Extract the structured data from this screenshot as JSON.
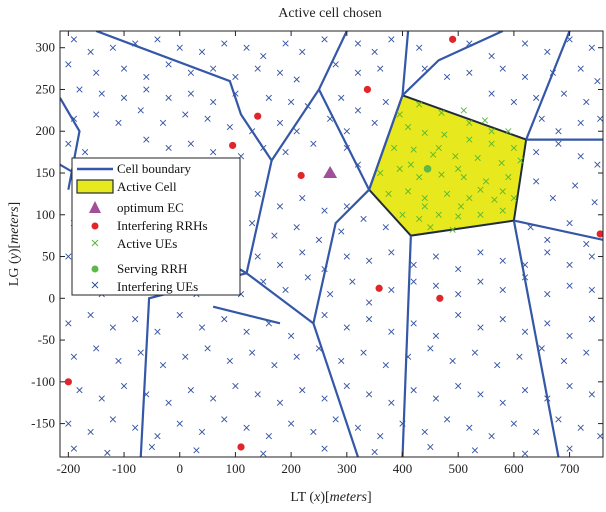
{
  "chart_data": {
    "type": "scatter",
    "title": "Active cell chosen",
    "xlabel": "LT (x)[meters]",
    "ylabel": "LG (y)[meters]",
    "xlim": [
      -215,
      760
    ],
    "ylim": [
      -190,
      320
    ],
    "xticks": [
      -200,
      -100,
      0,
      100,
      200,
      300,
      400,
      500,
      600,
      700
    ],
    "yticks": [
      -150,
      -100,
      -50,
      0,
      50,
      100,
      150,
      200,
      250,
      300
    ],
    "legend": {
      "position": "left",
      "entries": [
        "Cell boundary",
        "Active Cell",
        "optimum EC",
        "Interfering RRHs",
        "Active UEs",
        "Serving RRH",
        "Interfering UEs"
      ]
    },
    "colors": {
      "cell_boundary": "#3457a8",
      "active_cell_fill": "#e8e81e",
      "active_cell_edge": "#1f2d3a",
      "optimum_ec": "#a0509a",
      "interfering_rrh": "#e0262a",
      "active_ue": "#55b832",
      "serving_rrh": "#5cb84a",
      "interfering_ue": "#2f4fa0"
    },
    "active_cell": [
      [
        400,
        243
      ],
      [
        622,
        190
      ],
      [
        600,
        93
      ],
      [
        415,
        75
      ],
      [
        340,
        130
      ]
    ],
    "cell_boundaries": [
      [
        [
          -150,
          320
        ],
        [
          90,
          260
        ],
        [
          110,
          220
        ],
        [
          165,
          165
        ]
      ],
      [
        [
          165,
          165
        ],
        [
          250,
          250
        ],
        [
          300,
          320
        ]
      ],
      [
        [
          250,
          250
        ],
        [
          340,
          130
        ]
      ],
      [
        [
          340,
          130
        ],
        [
          280,
          90
        ],
        [
          240,
          -30
        ]
      ],
      [
        [
          340,
          130
        ],
        [
          400,
          243
        ],
        [
          410,
          320
        ]
      ],
      [
        [
          400,
          243
        ],
        [
          465,
          285
        ],
        [
          580,
          320
        ]
      ],
      [
        [
          622,
          190
        ],
        [
          700,
          320
        ]
      ],
      [
        [
          622,
          190
        ],
        [
          760,
          190
        ]
      ],
      [
        [
          415,
          75
        ],
        [
          400,
          -190
        ]
      ],
      [
        [
          600,
          93
        ],
        [
          680,
          -190
        ]
      ],
      [
        [
          600,
          93
        ],
        [
          760,
          70
        ]
      ],
      [
        [
          165,
          165
        ],
        [
          120,
          30
        ],
        [
          -215,
          160
        ]
      ],
      [
        [
          120,
          30
        ],
        [
          240,
          -30
        ]
      ],
      [
        [
          240,
          -30
        ],
        [
          320,
          -190
        ]
      ],
      [
        [
          -215,
          240
        ],
        [
          -180,
          200
        ],
        [
          -200,
          130
        ]
      ],
      [
        [
          120,
          30
        ],
        [
          -55,
          0
        ],
        [
          -70,
          -190
        ]
      ],
      [
        [
          60,
          -10
        ],
        [
          180,
          -30
        ]
      ]
    ],
    "optimum_ec": [
      [
        270,
        150
      ]
    ],
    "interfering_rrhs": [
      [
        490,
        310
      ],
      [
        140,
        218
      ],
      [
        337,
        250
      ],
      [
        95,
        183
      ],
      [
        218,
        147
      ],
      [
        358,
        12
      ],
      [
        467,
        0
      ],
      [
        755,
        77
      ],
      [
        -200,
        -100
      ],
      [
        110,
        -178
      ]
    ],
    "serving_rrh": [
      [
        445,
        155
      ]
    ],
    "active_ues": [
      [
        395,
        220
      ],
      [
        430,
        232
      ],
      [
        470,
        222
      ],
      [
        510,
        225
      ],
      [
        548,
        213
      ],
      [
        590,
        200
      ],
      [
        410,
        205
      ],
      [
        440,
        198
      ],
      [
        475,
        196
      ],
      [
        520,
        190
      ],
      [
        560,
        185
      ],
      [
        600,
        180
      ],
      [
        385,
        180
      ],
      [
        420,
        178
      ],
      [
        455,
        172
      ],
      [
        495,
        170
      ],
      [
        535,
        168
      ],
      [
        578,
        162
      ],
      [
        612,
        165
      ],
      [
        360,
        150
      ],
      [
        395,
        155
      ],
      [
        430,
        145
      ],
      [
        470,
        148
      ],
      [
        510,
        145
      ],
      [
        550,
        140
      ],
      [
        590,
        145
      ],
      [
        375,
        125
      ],
      [
        410,
        128
      ],
      [
        440,
        120
      ],
      [
        480,
        125
      ],
      [
        520,
        120
      ],
      [
        565,
        118
      ],
      [
        600,
        120
      ],
      [
        400,
        100
      ],
      [
        430,
        95
      ],
      [
        465,
        100
      ],
      [
        500,
        98
      ],
      [
        540,
        100
      ],
      [
        580,
        105
      ],
      [
        450,
        85
      ],
      [
        490,
        82
      ],
      [
        520,
        210
      ],
      [
        465,
        180
      ],
      [
        500,
        155
      ],
      [
        540,
        130
      ],
      [
        415,
        160
      ],
      [
        580,
        128
      ],
      [
        440,
        110
      ],
      [
        560,
        200
      ],
      [
        505,
        110
      ]
    ],
    "interfering_ues": [
      [
        -190,
        310
      ],
      [
        -160,
        295
      ],
      [
        -120,
        300
      ],
      [
        -80,
        305
      ],
      [
        -40,
        310
      ],
      [
        0,
        300
      ],
      [
        40,
        295
      ],
      [
        80,
        305
      ],
      [
        120,
        300
      ],
      [
        150,
        290
      ],
      [
        190,
        305
      ],
      [
        220,
        295
      ],
      [
        260,
        310
      ],
      [
        320,
        305
      ],
      [
        350,
        295
      ],
      [
        380,
        310
      ],
      [
        430,
        300
      ],
      [
        520,
        305
      ],
      [
        560,
        290
      ],
      [
        620,
        305
      ],
      [
        660,
        295
      ],
      [
        700,
        310
      ],
      [
        740,
        300
      ],
      [
        -200,
        280
      ],
      [
        -150,
        270
      ],
      [
        -100,
        275
      ],
      [
        -60,
        265
      ],
      [
        -20,
        280
      ],
      [
        20,
        270
      ],
      [
        60,
        275
      ],
      [
        100,
        265
      ],
      [
        140,
        275
      ],
      [
        180,
        270
      ],
      [
        210,
        262
      ],
      [
        280,
        280
      ],
      [
        320,
        270
      ],
      [
        360,
        275
      ],
      [
        440,
        275
      ],
      [
        480,
        265
      ],
      [
        520,
        270
      ],
      [
        580,
        275
      ],
      [
        620,
        265
      ],
      [
        670,
        270
      ],
      [
        720,
        275
      ],
      [
        750,
        260
      ],
      [
        -180,
        250
      ],
      [
        -140,
        245
      ],
      [
        -100,
        240
      ],
      [
        -60,
        250
      ],
      [
        -20,
        240
      ],
      [
        20,
        245
      ],
      [
        60,
        235
      ],
      [
        100,
        245
      ],
      [
        160,
        240
      ],
      [
        200,
        235
      ],
      [
        230,
        230
      ],
      [
        290,
        240
      ],
      [
        320,
        225
      ],
      [
        370,
        235
      ],
      [
        560,
        245
      ],
      [
        600,
        235
      ],
      [
        640,
        240
      ],
      [
        690,
        245
      ],
      [
        730,
        235
      ],
      [
        -190,
        215
      ],
      [
        -150,
        220
      ],
      [
        -110,
        210
      ],
      [
        -70,
        225
      ],
      [
        -30,
        210
      ],
      [
        10,
        220
      ],
      [
        50,
        215
      ],
      [
        90,
        205
      ],
      [
        130,
        200
      ],
      [
        180,
        210
      ],
      [
        210,
        200
      ],
      [
        270,
        215
      ],
      [
        300,
        200
      ],
      [
        350,
        210
      ],
      [
        650,
        215
      ],
      [
        680,
        200
      ],
      [
        720,
        210
      ],
      [
        755,
        215
      ],
      [
        -200,
        185
      ],
      [
        -170,
        175
      ],
      [
        -60,
        190
      ],
      [
        -20,
        180
      ],
      [
        20,
        185
      ],
      [
        60,
        175
      ],
      [
        110,
        170
      ],
      [
        150,
        180
      ],
      [
        190,
        175
      ],
      [
        240,
        185
      ],
      [
        300,
        180
      ],
      [
        320,
        160
      ],
      [
        640,
        175
      ],
      [
        680,
        185
      ],
      [
        720,
        170
      ],
      [
        750,
        160
      ],
      [
        -180,
        130
      ],
      [
        -140,
        125
      ],
      [
        -100,
        120
      ],
      [
        -60,
        130
      ],
      [
        -20,
        115
      ],
      [
        20,
        125
      ],
      [
        60,
        110
      ],
      [
        100,
        120
      ],
      [
        140,
        125
      ],
      [
        180,
        110
      ],
      [
        220,
        120
      ],
      [
        260,
        105
      ],
      [
        300,
        110
      ],
      [
        640,
        140
      ],
      [
        670,
        120
      ],
      [
        710,
        135
      ],
      [
        745,
        115
      ],
      [
        -190,
        90
      ],
      [
        -150,
        95
      ],
      [
        -110,
        80
      ],
      [
        -70,
        90
      ],
      [
        -30,
        75
      ],
      [
        10,
        85
      ],
      [
        50,
        95
      ],
      [
        90,
        80
      ],
      [
        130,
        90
      ],
      [
        170,
        75
      ],
      [
        210,
        85
      ],
      [
        250,
        70
      ],
      [
        290,
        80
      ],
      [
        330,
        95
      ],
      [
        370,
        85
      ],
      [
        630,
        85
      ],
      [
        660,
        70
      ],
      [
        700,
        90
      ],
      [
        730,
        65
      ],
      [
        -200,
        50
      ],
      [
        -160,
        55
      ],
      [
        -120,
        40
      ],
      [
        -80,
        50
      ],
      [
        -40,
        35
      ],
      [
        0,
        45
      ],
      [
        40,
        55
      ],
      [
        80,
        40
      ],
      [
        140,
        50
      ],
      [
        180,
        40
      ],
      [
        220,
        55
      ],
      [
        260,
        35
      ],
      [
        300,
        50
      ],
      [
        340,
        45
      ],
      [
        380,
        55
      ],
      [
        420,
        40
      ],
      [
        460,
        50
      ],
      [
        500,
        35
      ],
      [
        540,
        55
      ],
      [
        580,
        45
      ],
      [
        620,
        40
      ],
      [
        660,
        55
      ],
      [
        700,
        40
      ],
      [
        740,
        50
      ],
      [
        -180,
        15
      ],
      [
        -140,
        5
      ],
      [
        -100,
        20
      ],
      [
        -60,
        10
      ],
      [
        -20,
        25
      ],
      [
        30,
        5
      ],
      [
        70,
        15
      ],
      [
        110,
        5
      ],
      [
        150,
        20
      ],
      [
        190,
        10
      ],
      [
        230,
        25
      ],
      [
        270,
        5
      ],
      [
        310,
        20
      ],
      [
        340,
        -5
      ],
      [
        380,
        10
      ],
      [
        420,
        20
      ],
      [
        460,
        15
      ],
      [
        500,
        5
      ],
      [
        540,
        20
      ],
      [
        580,
        10
      ],
      [
        620,
        25
      ],
      [
        660,
        5
      ],
      [
        700,
        15
      ],
      [
        740,
        10
      ],
      [
        -200,
        -30
      ],
      [
        -160,
        -20
      ],
      [
        -120,
        -35
      ],
      [
        -80,
        -25
      ],
      [
        -40,
        -40
      ],
      [
        0,
        -20
      ],
      [
        40,
        -35
      ],
      [
        80,
        -25
      ],
      [
        120,
        -40
      ],
      [
        160,
        -30
      ],
      [
        200,
        -45
      ],
      [
        260,
        -20
      ],
      [
        300,
        -35
      ],
      [
        340,
        -25
      ],
      [
        380,
        -40
      ],
      [
        420,
        -30
      ],
      [
        460,
        -45
      ],
      [
        500,
        -20
      ],
      [
        540,
        -35
      ],
      [
        580,
        -25
      ],
      [
        620,
        -40
      ],
      [
        660,
        -30
      ],
      [
        700,
        -45
      ],
      [
        740,
        -25
      ],
      [
        -190,
        -70
      ],
      [
        -150,
        -60
      ],
      [
        -110,
        -75
      ],
      [
        -70,
        -65
      ],
      [
        -30,
        -80
      ],
      [
        10,
        -70
      ],
      [
        50,
        -60
      ],
      [
        90,
        -75
      ],
      [
        130,
        -65
      ],
      [
        170,
        -80
      ],
      [
        210,
        -70
      ],
      [
        250,
        -60
      ],
      [
        290,
        -75
      ],
      [
        330,
        -65
      ],
      [
        370,
        -80
      ],
      [
        410,
        -70
      ],
      [
        450,
        -60
      ],
      [
        490,
        -75
      ],
      [
        530,
        -65
      ],
      [
        570,
        -80
      ],
      [
        610,
        -70
      ],
      [
        650,
        -60
      ],
      [
        690,
        -75
      ],
      [
        730,
        -65
      ],
      [
        -180,
        -110
      ],
      [
        -140,
        -120
      ],
      [
        -100,
        -105
      ],
      [
        -60,
        -115
      ],
      [
        -20,
        -125
      ],
      [
        20,
        -110
      ],
      [
        60,
        -120
      ],
      [
        100,
        -105
      ],
      [
        140,
        -115
      ],
      [
        180,
        -125
      ],
      [
        220,
        -110
      ],
      [
        260,
        -120
      ],
      [
        300,
        -105
      ],
      [
        340,
        -115
      ],
      [
        380,
        -125
      ],
      [
        420,
        -110
      ],
      [
        460,
        -120
      ],
      [
        500,
        -105
      ],
      [
        540,
        -115
      ],
      [
        580,
        -125
      ],
      [
        620,
        -110
      ],
      [
        660,
        -120
      ],
      [
        700,
        -105
      ],
      [
        740,
        -115
      ],
      [
        -200,
        -150
      ],
      [
        -160,
        -160
      ],
      [
        -120,
        -145
      ],
      [
        -80,
        -155
      ],
      [
        -40,
        -165
      ],
      [
        0,
        -150
      ],
      [
        40,
        -160
      ],
      [
        80,
        -145
      ],
      [
        120,
        -155
      ],
      [
        160,
        -165
      ],
      [
        200,
        -150
      ],
      [
        240,
        -160
      ],
      [
        280,
        -145
      ],
      [
        320,
        -155
      ],
      [
        360,
        -165
      ],
      [
        400,
        -150
      ],
      [
        440,
        -160
      ],
      [
        480,
        -145
      ],
      [
        520,
        -155
      ],
      [
        560,
        -165
      ],
      [
        600,
        -150
      ],
      [
        640,
        -160
      ],
      [
        680,
        -145
      ],
      [
        720,
        -155
      ],
      [
        755,
        -165
      ],
      [
        -190,
        -180
      ],
      [
        -130,
        -185
      ],
      [
        -50,
        -178
      ],
      [
        30,
        -182
      ],
      [
        150,
        -186
      ],
      [
        260,
        -180
      ],
      [
        350,
        -184
      ],
      [
        450,
        -178
      ],
      [
        530,
        -182
      ],
      [
        620,
        -186
      ],
      [
        700,
        -180
      ]
    ]
  }
}
